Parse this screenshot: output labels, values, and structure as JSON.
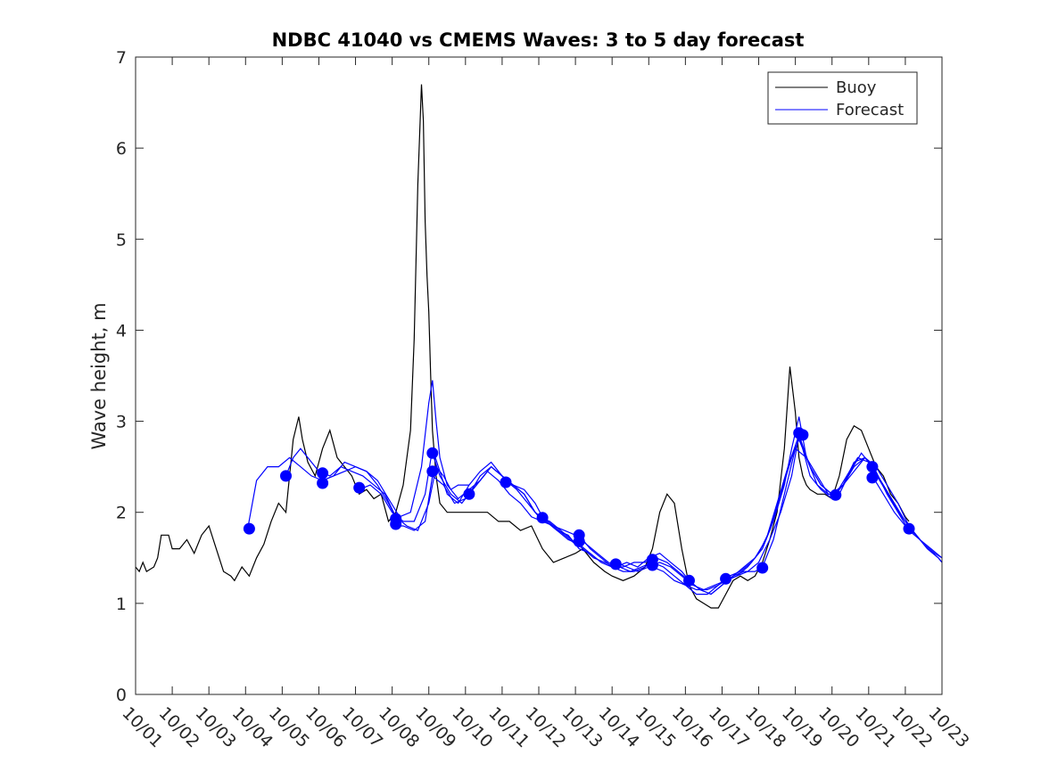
{
  "chart_data": {
    "type": "line",
    "title": "NDBC 41040 vs CMEMS Waves: 3 to 5 day forecast",
    "xlabel": "",
    "ylabel": "Wave height, m",
    "xlim": [
      "10/01",
      "10/23"
    ],
    "ylim": [
      0,
      7
    ],
    "yticks": [
      0,
      1,
      2,
      3,
      4,
      5,
      6,
      7
    ],
    "xticks": [
      "10/01",
      "10/02",
      "10/03",
      "10/04",
      "10/05",
      "10/06",
      "10/07",
      "10/08",
      "10/09",
      "10/10",
      "10/11",
      "10/12",
      "10/13",
      "10/14",
      "10/15",
      "10/16",
      "10/17",
      "10/18",
      "10/19",
      "10/20",
      "10/21",
      "10/22",
      "10/23"
    ],
    "x_unit": "day of October",
    "grid": false,
    "legend": {
      "placement": "top-right",
      "entries": [
        "Buoy",
        "Forecast"
      ]
    },
    "colors": {
      "buoy": "#000000",
      "forecast": "#0000ff"
    },
    "series": [
      {
        "name": "Buoy",
        "style": "line",
        "x": [
          1.0,
          1.1,
          1.2,
          1.3,
          1.5,
          1.6,
          1.7,
          1.9,
          2.0,
          2.2,
          2.4,
          2.6,
          2.8,
          3.0,
          3.2,
          3.4,
          3.6,
          3.7,
          3.9,
          4.1,
          4.3,
          4.5,
          4.7,
          4.9,
          5.1,
          5.3,
          5.45,
          5.55,
          5.7,
          5.9,
          6.1,
          6.3,
          6.5,
          6.7,
          6.9,
          7.1,
          7.3,
          7.5,
          7.7,
          7.9,
          8.1,
          8.3,
          8.5,
          8.6,
          8.7,
          8.8,
          8.85,
          8.9,
          8.95,
          9.0,
          9.05,
          9.1,
          9.2,
          9.3,
          9.5,
          9.7,
          10.0,
          10.3,
          10.6,
          10.9,
          11.2,
          11.5,
          11.8,
          12.1,
          12.4,
          12.7,
          13.0,
          13.2,
          13.5,
          13.8,
          14.0,
          14.3,
          14.6,
          14.9,
          15.1,
          15.3,
          15.5,
          15.7,
          15.9,
          16.1,
          16.3,
          16.5,
          16.7,
          16.9,
          17.1,
          17.3,
          17.5,
          17.7,
          17.9,
          18.1,
          18.3,
          18.5,
          18.7,
          18.85,
          19.0,
          19.1,
          19.2,
          19.3,
          19.4,
          19.6,
          19.8,
          20.0,
          20.2,
          20.4,
          20.6,
          20.8,
          21.0,
          21.2,
          21.4,
          21.6,
          21.8,
          22.0,
          22.1
        ],
        "y": [
          1.4,
          1.35,
          1.45,
          1.35,
          1.4,
          1.5,
          1.75,
          1.75,
          1.6,
          1.6,
          1.7,
          1.55,
          1.75,
          1.85,
          1.6,
          1.35,
          1.3,
          1.25,
          1.4,
          1.3,
          1.5,
          1.65,
          1.9,
          2.1,
          2.0,
          2.8,
          3.05,
          2.8,
          2.55,
          2.4,
          2.7,
          2.9,
          2.6,
          2.5,
          2.4,
          2.2,
          2.25,
          2.15,
          2.2,
          1.9,
          2.0,
          2.3,
          2.9,
          3.9,
          5.6,
          6.7,
          6.3,
          5.2,
          4.6,
          4.2,
          3.5,
          2.9,
          2.4,
          2.1,
          2.0,
          2.0,
          2.0,
          2.0,
          2.0,
          1.9,
          1.9,
          1.8,
          1.85,
          1.6,
          1.45,
          1.5,
          1.55,
          1.6,
          1.45,
          1.35,
          1.3,
          1.25,
          1.3,
          1.4,
          1.6,
          2.0,
          2.2,
          2.1,
          1.6,
          1.2,
          1.05,
          1.0,
          0.95,
          0.95,
          1.1,
          1.25,
          1.3,
          1.25,
          1.3,
          1.45,
          1.7,
          2.0,
          2.7,
          3.6,
          3.1,
          2.6,
          2.4,
          2.3,
          2.25,
          2.2,
          2.2,
          2.15,
          2.4,
          2.8,
          2.95,
          2.9,
          2.7,
          2.5,
          2.4,
          2.2,
          2.1,
          1.95,
          1.9
        ]
      },
      {
        "name": "Forecast",
        "style": "line",
        "segments": [
          {
            "x": [
              4.05,
              4.3,
              4.6,
              4.9,
              5.2,
              5.5,
              5.8,
              6.1,
              6.4,
              6.7,
              7.0,
              7.3,
              7.6,
              7.9,
              8.1
            ],
            "y": [
              1.8,
              2.35,
              2.5,
              2.5,
              2.6,
              2.5,
              2.4,
              2.35,
              2.4,
              2.45,
              2.5,
              2.45,
              2.3,
              2.1,
              1.95
            ]
          },
          {
            "x": [
              5.1,
              5.3,
              5.5,
              5.7,
              6.0,
              6.3,
              6.6,
              6.9,
              7.2,
              7.5,
              7.8,
              8.1,
              8.4,
              8.7,
              9.0,
              9.2,
              9.4,
              9.6,
              9.8,
              10.0,
              10.1
            ],
            "y": [
              2.4,
              2.6,
              2.7,
              2.6,
              2.45,
              2.4,
              2.5,
              2.45,
              2.4,
              2.3,
              2.2,
              1.95,
              1.85,
              1.8,
              2.1,
              2.5,
              2.4,
              2.25,
              2.3,
              2.3,
              2.3
            ]
          },
          {
            "x": [
              6.1,
              6.4,
              6.7,
              7.0,
              7.3,
              7.6,
              7.9,
              8.2,
              8.5,
              8.8,
              9.0,
              9.1,
              9.2,
              9.3,
              9.5,
              9.8,
              10.1,
              10.4,
              10.7,
              11.0,
              11.1
            ],
            "y": [
              2.35,
              2.4,
              2.55,
              2.5,
              2.45,
              2.35,
              2.15,
              1.95,
              2.0,
              2.5,
              3.2,
              3.45,
              3.0,
              2.6,
              2.3,
              2.15,
              2.25,
              2.35,
              2.5,
              2.4,
              2.35
            ]
          },
          {
            "x": [
              7.1,
              7.4,
              7.7,
              8.0,
              8.3,
              8.6,
              8.9,
              9.1,
              9.3,
              9.5,
              9.8,
              10.1,
              10.4,
              10.7,
              11.0,
              11.3,
              11.6,
              11.9,
              12.1
            ],
            "y": [
              2.25,
              2.3,
              2.2,
              2.0,
              1.9,
              1.9,
              2.2,
              2.7,
              2.45,
              2.2,
              2.1,
              2.3,
              2.45,
              2.55,
              2.4,
              2.3,
              2.25,
              2.1,
              1.95
            ]
          },
          {
            "x": [
              8.1,
              8.3,
              8.6,
              8.9,
              9.1,
              9.4,
              9.7,
              10.0,
              10.3,
              10.6,
              10.9,
              11.2,
              11.5,
              11.8,
              12.1,
              12.4,
              12.7,
              13.0,
              13.1
            ],
            "y": [
              1.85,
              1.85,
              1.8,
              1.9,
              2.4,
              2.3,
              2.1,
              2.15,
              2.3,
              2.45,
              2.35,
              2.2,
              2.1,
              1.95,
              1.9,
              1.85,
              1.75,
              1.65,
              1.7
            ]
          },
          {
            "x": [
              9.1,
              9.3,
              9.6,
              9.9,
              10.1,
              10.4,
              10.7,
              11.0,
              11.3,
              11.6,
              11.9,
              12.2,
              12.5,
              12.8,
              13.1,
              13.4,
              13.7,
              14.0,
              14.1
            ],
            "y": [
              2.65,
              2.4,
              2.2,
              2.1,
              2.2,
              2.35,
              2.5,
              2.4,
              2.3,
              2.2,
              2.0,
              1.9,
              1.8,
              1.7,
              1.65,
              1.55,
              1.45,
              1.4,
              1.45
            ]
          },
          {
            "x": [
              10.1,
              10.4,
              10.7,
              11.0,
              11.3,
              11.6,
              11.9,
              12.2,
              12.5,
              12.8,
              13.1,
              13.4,
              13.7,
              14.0,
              14.3,
              14.6,
              14.9,
              15.1
            ],
            "y": [
              2.2,
              2.4,
              2.5,
              2.4,
              2.3,
              2.2,
              2.0,
              1.9,
              1.8,
              1.75,
              1.6,
              1.55,
              1.45,
              1.4,
              1.4,
              1.45,
              1.45,
              1.5
            ]
          },
          {
            "x": [
              11.1,
              11.4,
              11.7,
              12.0,
              12.3,
              12.6,
              12.9,
              13.2,
              13.5,
              13.8,
              14.1,
              14.4,
              14.7,
              15.0,
              15.3,
              15.6,
              15.9,
              16.1
            ],
            "y": [
              2.35,
              2.25,
              2.1,
              1.95,
              1.9,
              1.8,
              1.7,
              1.6,
              1.5,
              1.45,
              1.4,
              1.45,
              1.4,
              1.5,
              1.55,
              1.45,
              1.35,
              1.25
            ]
          },
          {
            "x": [
              12.1,
              12.4,
              12.7,
              13.0,
              13.3,
              13.6,
              13.9,
              14.2,
              14.5,
              14.8,
              15.1,
              15.4,
              15.7,
              16.0,
              16.3,
              16.6,
              16.9,
              17.1
            ],
            "y": [
              1.95,
              1.85,
              1.8,
              1.75,
              1.65,
              1.55,
              1.45,
              1.4,
              1.35,
              1.4,
              1.45,
              1.4,
              1.3,
              1.2,
              1.15,
              1.15,
              1.2,
              1.25
            ]
          },
          {
            "x": [
              13.1,
              13.4,
              13.7,
              14.0,
              14.3,
              14.6,
              14.9,
              15.2,
              15.5,
              15.8,
              16.1,
              16.4,
              16.7,
              17.0,
              17.3,
              17.6,
              17.9,
              18.1
            ],
            "y": [
              1.75,
              1.6,
              1.5,
              1.4,
              1.35,
              1.35,
              1.4,
              1.5,
              1.45,
              1.35,
              1.25,
              1.15,
              1.1,
              1.2,
              1.3,
              1.35,
              1.35,
              1.4
            ]
          },
          {
            "x": [
              14.1,
              14.4,
              14.7,
              15.0,
              15.3,
              15.6,
              15.9,
              16.2,
              16.5,
              16.8,
              17.1,
              17.4,
              17.7,
              18.0,
              18.3,
              18.6,
              18.9,
              19.1
            ],
            "y": [
              1.45,
              1.4,
              1.35,
              1.4,
              1.45,
              1.4,
              1.3,
              1.2,
              1.15,
              1.2,
              1.25,
              1.3,
              1.35,
              1.45,
              1.7,
              2.0,
              2.4,
              2.85
            ]
          },
          {
            "x": [
              15.1,
              15.4,
              15.7,
              16.0,
              16.3,
              16.6,
              16.9,
              17.2,
              17.5,
              17.8,
              18.1,
              18.4,
              18.7,
              18.9,
              19.1,
              19.3,
              19.6,
              19.9,
              20.1
            ],
            "y": [
              1.4,
              1.35,
              1.25,
              1.2,
              1.1,
              1.1,
              1.2,
              1.3,
              1.35,
              1.45,
              1.6,
              1.9,
              2.3,
              2.7,
              3.05,
              2.6,
              2.3,
              2.2,
              2.2
            ]
          },
          {
            "x": [
              16.1,
              16.4,
              16.7,
              17.0,
              17.3,
              17.6,
              17.9,
              18.2,
              18.5,
              18.8,
              19.1,
              19.4,
              19.7,
              20.0,
              20.3,
              20.6,
              20.9,
              21.1
            ],
            "y": [
              1.25,
              1.15,
              1.1,
              1.2,
              1.3,
              1.4,
              1.5,
              1.7,
              2.1,
              2.5,
              2.85,
              2.5,
              2.3,
              2.2,
              2.3,
              2.5,
              2.6,
              2.5
            ]
          },
          {
            "x": [
              17.1,
              17.4,
              17.7,
              18.0,
              18.3,
              18.6,
              18.9,
              19.1,
              19.4,
              19.7,
              20.0,
              20.3,
              20.6,
              20.9,
              21.2,
              21.5,
              21.8,
              22.1
            ],
            "y": [
              1.25,
              1.3,
              1.4,
              1.55,
              1.8,
              2.2,
              2.6,
              2.8,
              2.5,
              2.3,
              2.2,
              2.3,
              2.45,
              2.6,
              2.5,
              2.3,
              2.1,
              1.85
            ]
          },
          {
            "x": [
              18.1,
              18.4,
              18.7,
              19.0,
              19.3,
              19.6,
              19.9,
              20.2,
              20.5,
              20.8,
              21.1,
              21.4,
              21.7,
              22.0,
              22.3,
              22.6,
              22.9,
              23.0
            ],
            "y": [
              1.4,
              1.7,
              2.2,
              2.7,
              2.6,
              2.4,
              2.2,
              2.2,
              2.45,
              2.65,
              2.5,
              2.3,
              2.1,
              1.9,
              1.75,
              1.6,
              1.5,
              1.45
            ]
          },
          {
            "x": [
              19.1,
              19.4,
              19.7,
              20.0,
              20.3,
              20.6,
              20.9,
              21.2,
              21.5,
              21.8,
              22.1,
              22.4,
              22.7,
              23.0
            ],
            "y": [
              2.85,
              2.4,
              2.25,
              2.15,
              2.3,
              2.55,
              2.6,
              2.45,
              2.2,
              2.0,
              1.8,
              1.7,
              1.6,
              1.5
            ]
          },
          {
            "x": [
              20.1,
              20.4,
              20.7,
              21.0,
              21.3,
              21.6,
              21.9,
              22.2,
              22.5,
              22.8,
              23.0
            ],
            "y": [
              2.2,
              2.4,
              2.6,
              2.55,
              2.35,
              2.15,
              1.95,
              1.8,
              1.65,
              1.55,
              1.5
            ]
          },
          {
            "x": [
              21.1,
              21.4,
              21.7,
              22.0,
              22.3,
              22.6,
              22.9,
              23.0
            ],
            "y": [
              2.4,
              2.2,
              2.0,
              1.85,
              1.75,
              1.6,
              1.5,
              1.45
            ]
          }
        ]
      },
      {
        "name": "",
        "style": "markers",
        "x": [
          4.1,
          5.1,
          6.1,
          6.1,
          7.1,
          8.1,
          8.1,
          9.1,
          9.1,
          10.1,
          11.1,
          12.1,
          13.1,
          13.1,
          14.1,
          15.1,
          15.1,
          16.1,
          17.1,
          18.1,
          19.1,
          19.2,
          20.1,
          21.1,
          21.1,
          22.1
        ],
        "y": [
          1.82,
          2.4,
          2.43,
          2.32,
          2.27,
          1.93,
          1.87,
          2.65,
          2.45,
          2.2,
          2.33,
          1.94,
          1.75,
          1.68,
          1.43,
          1.48,
          1.42,
          1.25,
          1.27,
          1.39,
          2.87,
          2.85,
          2.19,
          2.5,
          2.38,
          1.82
        ]
      }
    ]
  }
}
